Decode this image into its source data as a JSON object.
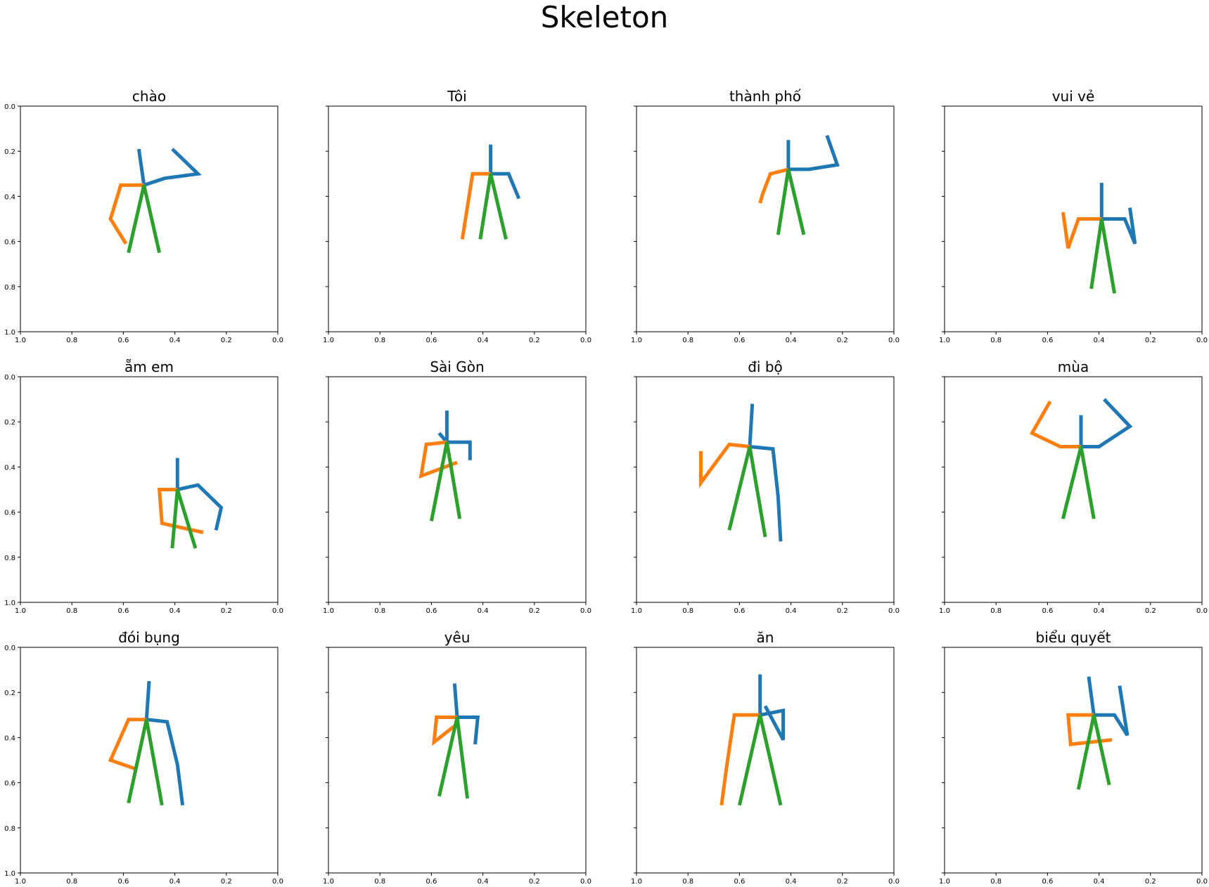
{
  "title": "Skeleton",
  "colors": {
    "right_arm": "#1f77b4",
    "left_arm": "#ff7f0e",
    "body": "#2ca02c",
    "axes": "#000000"
  },
  "chart_data": [
    {
      "type": "line",
      "title": "chào",
      "xlim": [
        1.0,
        0.0
      ],
      "ylim": [
        1.0,
        0.0
      ],
      "grid": false,
      "x_ticks": [
        "1.0",
        "0.8",
        "0.6",
        "0.4",
        "0.2",
        "0.0"
      ],
      "y_ticks": [
        "0.0",
        "0.2",
        "0.4",
        "0.6",
        "0.8",
        "1.0"
      ],
      "series": [
        {
          "color": "#1f77b4",
          "x": [
            0.54,
            0.52,
            0.44,
            0.31,
            0.41
          ],
          "y": [
            0.19,
            0.35,
            0.32,
            0.3,
            0.19
          ]
        },
        {
          "color": "#ff7f0e",
          "x": [
            0.52,
            0.61,
            0.65,
            0.59
          ],
          "y": [
            0.35,
            0.35,
            0.5,
            0.61
          ]
        },
        {
          "color": "#2ca02c",
          "x": [
            0.58,
            0.52,
            0.46
          ],
          "y": [
            0.65,
            0.35,
            0.65
          ]
        }
      ]
    },
    {
      "type": "line",
      "title": "Tôi",
      "xlim": [
        1.0,
        0.0
      ],
      "ylim": [
        1.0,
        0.0
      ],
      "grid": false,
      "x_ticks": [
        "1.0",
        "0.8",
        "0.6",
        "0.4",
        "0.2",
        "0.0"
      ],
      "y_ticks": [],
      "series": [
        {
          "color": "#1f77b4",
          "x": [
            0.37,
            0.37,
            0.3,
            0.26
          ],
          "y": [
            0.17,
            0.3,
            0.3,
            0.41
          ]
        },
        {
          "color": "#ff7f0e",
          "x": [
            0.37,
            0.44,
            0.48
          ],
          "y": [
            0.3,
            0.3,
            0.59
          ]
        },
        {
          "color": "#2ca02c",
          "x": [
            0.41,
            0.37,
            0.31
          ],
          "y": [
            0.59,
            0.3,
            0.59
          ]
        }
      ]
    },
    {
      "type": "line",
      "title": "thành phố",
      "xlim": [
        1.0,
        0.0
      ],
      "ylim": [
        1.0,
        0.0
      ],
      "grid": false,
      "x_ticks": [
        "1.0",
        "0.8",
        "0.6",
        "0.4",
        "0.2",
        "0.0"
      ],
      "y_ticks": [],
      "series": [
        {
          "color": "#1f77b4",
          "x": [
            0.41,
            0.41,
            0.33,
            0.22,
            0.26
          ],
          "y": [
            0.15,
            0.28,
            0.28,
            0.26,
            0.13
          ]
        },
        {
          "color": "#ff7f0e",
          "x": [
            0.41,
            0.48,
            0.51,
            0.52,
            0.51
          ],
          "y": [
            0.28,
            0.3,
            0.39,
            0.43,
            0.39
          ]
        },
        {
          "color": "#2ca02c",
          "x": [
            0.45,
            0.41,
            0.35
          ],
          "y": [
            0.57,
            0.28,
            0.57
          ]
        }
      ]
    },
    {
      "type": "line",
      "title": "vui vẻ",
      "xlim": [
        1.0,
        0.0
      ],
      "ylim": [
        1.0,
        0.0
      ],
      "grid": false,
      "x_ticks": [
        "1.0",
        "0.8",
        "0.6",
        "0.4",
        "0.2",
        "0.0"
      ],
      "y_ticks": [],
      "series": [
        {
          "color": "#1f77b4",
          "x": [
            0.39,
            0.39,
            0.3,
            0.26,
            0.28
          ],
          "y": [
            0.34,
            0.5,
            0.5,
            0.61,
            0.45
          ]
        },
        {
          "color": "#ff7f0e",
          "x": [
            0.39,
            0.48,
            0.52,
            0.54
          ],
          "y": [
            0.5,
            0.5,
            0.63,
            0.47
          ]
        },
        {
          "color": "#2ca02c",
          "x": [
            0.43,
            0.39,
            0.34
          ],
          "y": [
            0.81,
            0.5,
            0.83
          ]
        }
      ]
    },
    {
      "type": "line",
      "title": "ẵm em",
      "xlim": [
        1.0,
        0.0
      ],
      "ylim": [
        1.0,
        0.0
      ],
      "grid": false,
      "x_ticks": [
        "1.0",
        "0.8",
        "0.6",
        "0.4",
        "0.2",
        "0.0"
      ],
      "y_ticks": [
        "0.0",
        "0.2",
        "0.4",
        "0.6",
        "0.8",
        "1.0"
      ],
      "series": [
        {
          "color": "#1f77b4",
          "x": [
            0.39,
            0.39,
            0.31,
            0.22,
            0.24
          ],
          "y": [
            0.36,
            0.5,
            0.48,
            0.58,
            0.68
          ]
        },
        {
          "color": "#ff7f0e",
          "x": [
            0.39,
            0.46,
            0.45,
            0.29
          ],
          "y": [
            0.5,
            0.5,
            0.65,
            0.69
          ]
        },
        {
          "color": "#2ca02c",
          "x": [
            0.41,
            0.39,
            0.32
          ],
          "y": [
            0.76,
            0.5,
            0.76
          ]
        }
      ]
    },
    {
      "type": "line",
      "title": "Sài Gòn",
      "xlim": [
        1.0,
        0.0
      ],
      "ylim": [
        1.0,
        0.0
      ],
      "grid": false,
      "x_ticks": [
        "1.0",
        "0.8",
        "0.6",
        "0.4",
        "0.2",
        "0.0"
      ],
      "y_ticks": [],
      "series": [
        {
          "color": "#1f77b4",
          "x": [
            0.54,
            0.54,
            0.45,
            0.45
          ],
          "y": [
            0.15,
            0.29,
            0.29,
            0.37
          ]
        },
        {
          "color": "#1f77b4",
          "x": [
            0.54,
            0.57
          ],
          "y": [
            0.29,
            0.25
          ]
        },
        {
          "color": "#ff7f0e",
          "x": [
            0.54,
            0.62,
            0.64,
            0.5
          ],
          "y": [
            0.29,
            0.3,
            0.44,
            0.38
          ]
        },
        {
          "color": "#2ca02c",
          "x": [
            0.6,
            0.54,
            0.49
          ],
          "y": [
            0.64,
            0.29,
            0.63
          ]
        }
      ]
    },
    {
      "type": "line",
      "title": "đi bộ",
      "xlim": [
        1.0,
        0.0
      ],
      "ylim": [
        1.0,
        0.0
      ],
      "grid": false,
      "x_ticks": [
        "1.0",
        "0.8",
        "0.6",
        "0.4",
        "0.2",
        "0.0"
      ],
      "y_ticks": [],
      "series": [
        {
          "color": "#1f77b4",
          "x": [
            0.55,
            0.56,
            0.47,
            0.45,
            0.44
          ],
          "y": [
            0.12,
            0.31,
            0.32,
            0.53,
            0.73
          ]
        },
        {
          "color": "#ff7f0e",
          "x": [
            0.56,
            0.64,
            0.75,
            0.75
          ],
          "y": [
            0.31,
            0.3,
            0.47,
            0.33
          ]
        },
        {
          "color": "#2ca02c",
          "x": [
            0.64,
            0.56,
            0.5
          ],
          "y": [
            0.68,
            0.31,
            0.71
          ]
        }
      ]
    },
    {
      "type": "line",
      "title": "mùa",
      "xlim": [
        1.0,
        0.0
      ],
      "ylim": [
        1.0,
        0.0
      ],
      "grid": false,
      "x_ticks": [
        "1.0",
        "0.8",
        "0.6",
        "0.4",
        "0.2",
        "0.0"
      ],
      "y_ticks": [],
      "series": [
        {
          "color": "#1f77b4",
          "x": [
            0.47,
            0.47,
            0.4,
            0.28,
            0.38
          ],
          "y": [
            0.17,
            0.31,
            0.31,
            0.22,
            0.1
          ]
        },
        {
          "color": "#ff7f0e",
          "x": [
            0.47,
            0.55,
            0.66,
            0.59
          ],
          "y": [
            0.31,
            0.31,
            0.25,
            0.11
          ]
        },
        {
          "color": "#2ca02c",
          "x": [
            0.54,
            0.47,
            0.42
          ],
          "y": [
            0.63,
            0.31,
            0.63
          ]
        }
      ]
    },
    {
      "type": "line",
      "title": "đói bụng",
      "xlim": [
        1.0,
        0.0
      ],
      "ylim": [
        1.0,
        0.0
      ],
      "grid": false,
      "x_ticks": [
        "1.0",
        "0.8",
        "0.6",
        "0.4",
        "0.2",
        "0.0"
      ],
      "y_ticks": [
        "0.0",
        "0.2",
        "0.4",
        "0.6",
        "0.8",
        "1.0"
      ],
      "series": [
        {
          "color": "#1f77b4",
          "x": [
            0.5,
            0.51,
            0.43,
            0.39,
            0.37
          ],
          "y": [
            0.15,
            0.32,
            0.33,
            0.52,
            0.7
          ]
        },
        {
          "color": "#ff7f0e",
          "x": [
            0.51,
            0.58,
            0.65,
            0.55
          ],
          "y": [
            0.32,
            0.32,
            0.5,
            0.54
          ]
        },
        {
          "color": "#2ca02c",
          "x": [
            0.58,
            0.51,
            0.45
          ],
          "y": [
            0.69,
            0.32,
            0.7
          ]
        }
      ]
    },
    {
      "type": "line",
      "title": "yêu",
      "xlim": [
        1.0,
        0.0
      ],
      "ylim": [
        1.0,
        0.0
      ],
      "grid": false,
      "x_ticks": [
        "1.0",
        "0.8",
        "0.6",
        "0.4",
        "0.2",
        "0.0"
      ],
      "y_ticks": [],
      "series": [
        {
          "color": "#1f77b4",
          "x": [
            0.51,
            0.5,
            0.42,
            0.43
          ],
          "y": [
            0.16,
            0.31,
            0.31,
            0.43
          ]
        },
        {
          "color": "#ff7f0e",
          "x": [
            0.5,
            0.58,
            0.59,
            0.5
          ],
          "y": [
            0.31,
            0.31,
            0.42,
            0.34
          ]
        },
        {
          "color": "#2ca02c",
          "x": [
            0.57,
            0.5,
            0.46
          ],
          "y": [
            0.66,
            0.31,
            0.67
          ]
        }
      ]
    },
    {
      "type": "line",
      "title": "ăn",
      "xlim": [
        1.0,
        0.0
      ],
      "ylim": [
        1.0,
        0.0
      ],
      "grid": false,
      "x_ticks": [
        "1.0",
        "0.8",
        "0.6",
        "0.4",
        "0.2",
        "0.0"
      ],
      "y_ticks": [],
      "series": [
        {
          "color": "#1f77b4",
          "x": [
            0.52,
            0.52,
            0.43,
            0.43,
            0.5
          ],
          "y": [
            0.12,
            0.3,
            0.28,
            0.41,
            0.26
          ]
        },
        {
          "color": "#ff7f0e",
          "x": [
            0.52,
            0.62,
            0.65,
            0.67
          ],
          "y": [
            0.3,
            0.3,
            0.53,
            0.7
          ]
        },
        {
          "color": "#2ca02c",
          "x": [
            0.6,
            0.52,
            0.44
          ],
          "y": [
            0.7,
            0.3,
            0.7
          ]
        }
      ]
    },
    {
      "type": "line",
      "title": "biểu quyết",
      "xlim": [
        1.0,
        0.0
      ],
      "ylim": [
        1.0,
        0.0
      ],
      "grid": false,
      "x_ticks": [
        "1.0",
        "0.8",
        "0.6",
        "0.4",
        "0.2",
        "0.0"
      ],
      "y_ticks": [],
      "series": [
        {
          "color": "#1f77b4",
          "x": [
            0.44,
            0.42,
            0.34,
            0.29,
            0.32
          ],
          "y": [
            0.13,
            0.3,
            0.3,
            0.39,
            0.17
          ]
        },
        {
          "color": "#ff7f0e",
          "x": [
            0.42,
            0.52,
            0.51,
            0.35
          ],
          "y": [
            0.3,
            0.3,
            0.43,
            0.41
          ]
        },
        {
          "color": "#2ca02c",
          "x": [
            0.48,
            0.42,
            0.36
          ],
          "y": [
            0.63,
            0.3,
            0.61
          ]
        }
      ]
    }
  ]
}
